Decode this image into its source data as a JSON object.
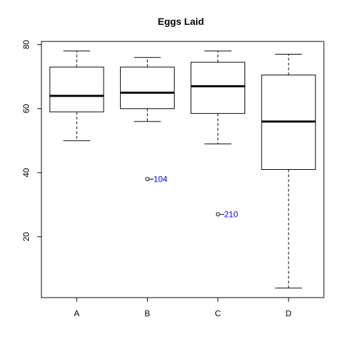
{
  "chart_data": {
    "type": "boxplot",
    "title": "Eggs Laid",
    "xlabel": "",
    "ylabel": "",
    "categories": [
      "A",
      "B",
      "C",
      "D"
    ],
    "ylim": [
      1,
      81
    ],
    "yticks": [
      20,
      40,
      60,
      80
    ],
    "boxes": [
      {
        "category": "A",
        "whisker_low": 50,
        "q1": 59,
        "median": 64,
        "q3": 73,
        "whisker_high": 78
      },
      {
        "category": "B",
        "whisker_low": 56,
        "q1": 60,
        "median": 65,
        "q3": 73,
        "whisker_high": 76
      },
      {
        "category": "C",
        "whisker_low": 49,
        "q1": 58.5,
        "median": 67,
        "q3": 74.5,
        "whisker_high": 78
      },
      {
        "category": "D",
        "whisker_low": 4,
        "q1": 41,
        "median": 56,
        "q3": 70.5,
        "whisker_high": 77
      }
    ],
    "outliers": [
      {
        "category": "B",
        "value": 38,
        "label": "104"
      },
      {
        "category": "C",
        "value": 27,
        "label": "210"
      }
    ],
    "grid": false,
    "outlier_label_color": "#0000ff"
  }
}
